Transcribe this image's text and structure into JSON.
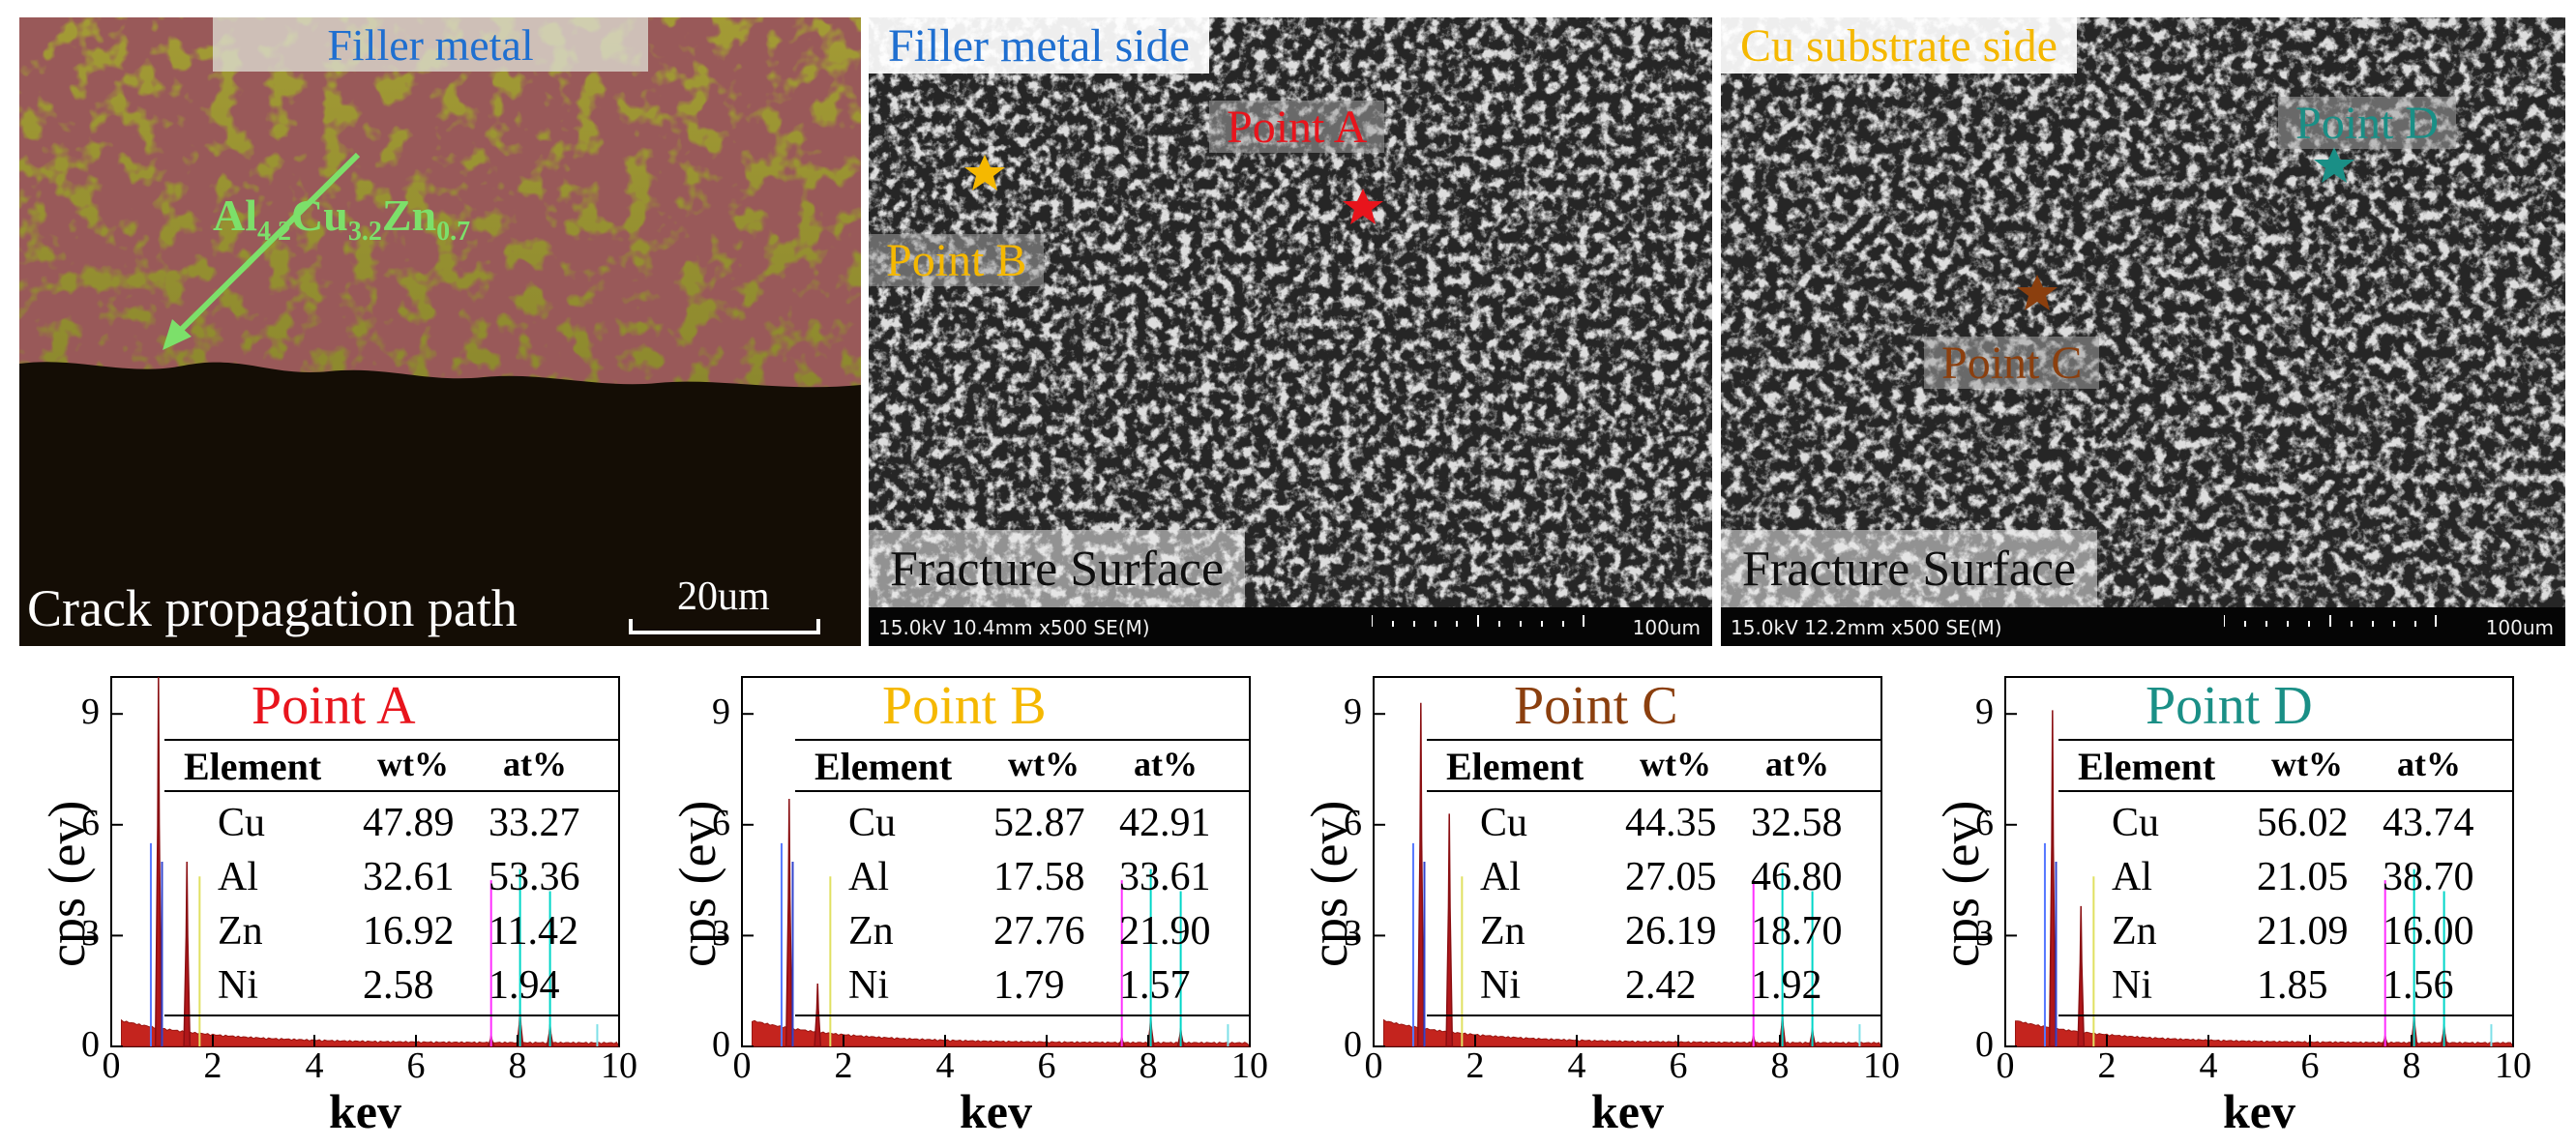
{
  "optical": {
    "title": "Filler metal",
    "phase_main": "Al",
    "phase_sub1": "4.2",
    "phase_cu": "Cu",
    "phase_sub2": "3.2",
    "phase_zn": "Zn",
    "phase_sub3": "0.7",
    "caption": "Crack propagation path",
    "scale": "20um"
  },
  "sem_left": {
    "title": "Filler metal side",
    "title_color": "#1f6fd0",
    "pointA": "Point A",
    "pointB": "Point B",
    "fracture": "Fracture Surface",
    "info": "15.0kV 10.4mm x500 SE(M)",
    "scale": "100um"
  },
  "sem_right": {
    "title": "Cu substrate side",
    "title_color": "#f5b800",
    "pointC": "Point C",
    "pointD": "Point D",
    "fracture": "Fracture Surface",
    "info": "15.0kV 12.2mm x500 SE(M)",
    "scale": "100um"
  },
  "colors": {
    "pointA": "#e8141c",
    "pointB": "#f5b800",
    "pointC": "#8b3f0e",
    "pointD": "#1a8f86"
  },
  "chart_data": [
    {
      "type": "table",
      "title": "Point A",
      "xlabel": "kev",
      "ylabel": "cps (ev)",
      "xlim": [
        0,
        10
      ],
      "ylim": [
        0,
        10
      ],
      "xticks": [
        "0",
        "2",
        "4",
        "6",
        "8",
        "10"
      ],
      "yticks": [
        "0",
        "3",
        "6",
        "9"
      ],
      "columns": [
        "Element",
        "wt%",
        "at%"
      ],
      "rows": [
        [
          "Cu",
          "47.89",
          "33.27"
        ],
        [
          "Al",
          "32.61",
          "53.36"
        ],
        [
          "Zn",
          "16.92",
          "11.42"
        ],
        [
          "Ni",
          "2.58",
          "1.94"
        ]
      ],
      "peaks": [
        {
          "x": 0.93,
          "y": 10.0
        },
        {
          "x": 1.49,
          "y": 5.0
        },
        {
          "x": 8.05,
          "y": 1.0
        },
        {
          "x": 8.64,
          "y": 0.6
        },
        {
          "x": 7.48,
          "y": 0.3
        }
      ]
    },
    {
      "type": "table",
      "title": "Point B",
      "xlabel": "kev",
      "ylabel": "cps (ev)",
      "xlim": [
        0,
        10
      ],
      "ylim": [
        0,
        10
      ],
      "xticks": [
        "0",
        "2",
        "4",
        "6",
        "8",
        "10"
      ],
      "yticks": [
        "0",
        "3",
        "6",
        "9"
      ],
      "columns": [
        "Element",
        "wt%",
        "at%"
      ],
      "rows": [
        [
          "Cu",
          "52.87",
          "42.91"
        ],
        [
          "Al",
          "17.58",
          "33.61"
        ],
        [
          "Zn",
          "27.76",
          "21.90"
        ],
        [
          "Ni",
          "1.79",
          "1.57"
        ]
      ],
      "peaks": [
        {
          "x": 0.93,
          "y": 6.7
        },
        {
          "x": 1.49,
          "y": 1.7
        },
        {
          "x": 8.05,
          "y": 0.8
        },
        {
          "x": 8.64,
          "y": 0.5
        },
        {
          "x": 7.48,
          "y": 0.25
        }
      ]
    },
    {
      "type": "table",
      "title": "Point C",
      "xlabel": "kev",
      "ylabel": "cps (ev)",
      "xlim": [
        0,
        10
      ],
      "ylim": [
        0,
        10
      ],
      "xticks": [
        "0",
        "2",
        "4",
        "6",
        "8",
        "10"
      ],
      "yticks": [
        "0",
        "3",
        "6",
        "9"
      ],
      "columns": [
        "Element",
        "wt%",
        "at%"
      ],
      "rows": [
        [
          "Cu",
          "44.35",
          "32.58"
        ],
        [
          "Al",
          "27.05",
          "46.80"
        ],
        [
          "Zn",
          "26.19",
          "18.70"
        ],
        [
          "Ni",
          "2.42",
          "1.92"
        ]
      ],
      "peaks": [
        {
          "x": 0.93,
          "y": 9.3
        },
        {
          "x": 1.49,
          "y": 6.3
        },
        {
          "x": 8.05,
          "y": 0.9
        },
        {
          "x": 8.64,
          "y": 0.5
        },
        {
          "x": 7.48,
          "y": 0.3
        }
      ]
    },
    {
      "type": "table",
      "title": "Point D",
      "xlabel": "kev",
      "ylabel": "cps (ev)",
      "xlim": [
        0,
        10
      ],
      "ylim": [
        0,
        10
      ],
      "xticks": [
        "0",
        "2",
        "4",
        "6",
        "8",
        "10"
      ],
      "yticks": [
        "0",
        "3",
        "6",
        "9"
      ],
      "columns": [
        "Element",
        "wt%",
        "at%"
      ],
      "rows": [
        [
          "Cu",
          "56.02",
          "43.74"
        ],
        [
          "Al",
          "21.05",
          "38.70"
        ],
        [
          "Zn",
          "21.09",
          "16.00"
        ],
        [
          "Ni",
          "1.85",
          "1.56"
        ]
      ],
      "peaks": [
        {
          "x": 0.93,
          "y": 9.1
        },
        {
          "x": 1.49,
          "y": 3.8
        },
        {
          "x": 8.05,
          "y": 0.9
        },
        {
          "x": 8.64,
          "y": 0.6
        },
        {
          "x": 7.48,
          "y": 0.3
        }
      ]
    }
  ]
}
